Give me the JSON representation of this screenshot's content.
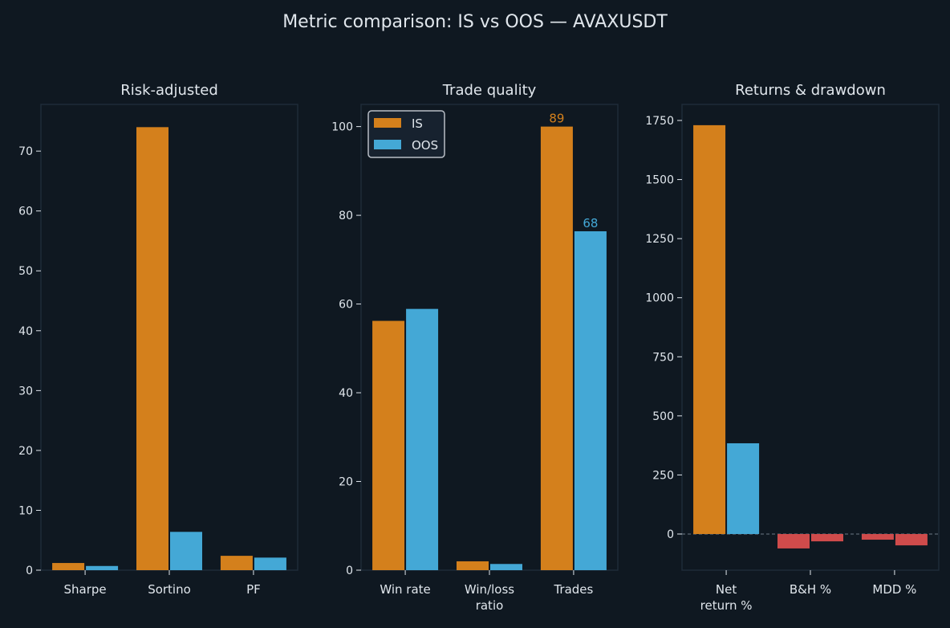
{
  "chart_data": {
    "title": "Metric comparison: IS vs OOS — AVAXUSDT",
    "legend": {
      "placement": "top-left of middle panel",
      "entries": [
        "IS",
        "OOS"
      ]
    },
    "colors": {
      "is": "#d4801c",
      "oos": "#44a8d6",
      "negative": "#cf4b4b",
      "background": "#0f1821",
      "text": "#e0e6ec"
    },
    "panels": [
      {
        "type": "bar",
        "title": "Risk-adjusted",
        "categories": [
          [
            "Sharpe"
          ],
          [
            "Sortino"
          ],
          [
            "PF"
          ]
        ],
        "ylim": [
          0,
          77.8
        ],
        "yticks": [
          0,
          10,
          20,
          30,
          40,
          50,
          60,
          70
        ],
        "series": [
          {
            "name": "IS",
            "values": [
              1.2,
              74.0,
              2.4
            ]
          },
          {
            "name": "OOS",
            "values": [
              0.7,
              6.4,
              2.1
            ]
          }
        ]
      },
      {
        "type": "bar",
        "title": "Trade quality",
        "categories": [
          [
            "Win rate"
          ],
          [
            "Win/loss",
            "ratio"
          ],
          [
            "Trades"
          ]
        ],
        "ylim": [
          0,
          105
        ],
        "yticks": [
          0,
          20,
          40,
          60,
          80,
          100
        ],
        "series": [
          {
            "name": "IS",
            "values": [
              56.2,
              2.0,
              100
            ]
          },
          {
            "name": "OOS",
            "values": [
              58.9,
              1.4,
              76.4
            ]
          }
        ],
        "annotations": [
          {
            "category": 2,
            "series": 0,
            "text": "89"
          },
          {
            "category": 2,
            "series": 1,
            "text": "68"
          }
        ],
        "show_legend": true
      },
      {
        "type": "bar",
        "title": "Returns & drawdown",
        "categories": [
          [
            "Net",
            "return %"
          ],
          [
            "B&H %"
          ],
          [
            "MDD %"
          ]
        ],
        "ylim": [
          -153,
          1818
        ],
        "yticks": [
          0,
          250,
          500,
          750,
          1000,
          1250,
          1500,
          1750
        ],
        "zero_line": true,
        "series": [
          {
            "name": "IS",
            "values": [
              1730,
              -61,
              -24
            ]
          },
          {
            "name": "OOS",
            "values": [
              384,
              -31,
              -48
            ]
          }
        ]
      }
    ]
  }
}
